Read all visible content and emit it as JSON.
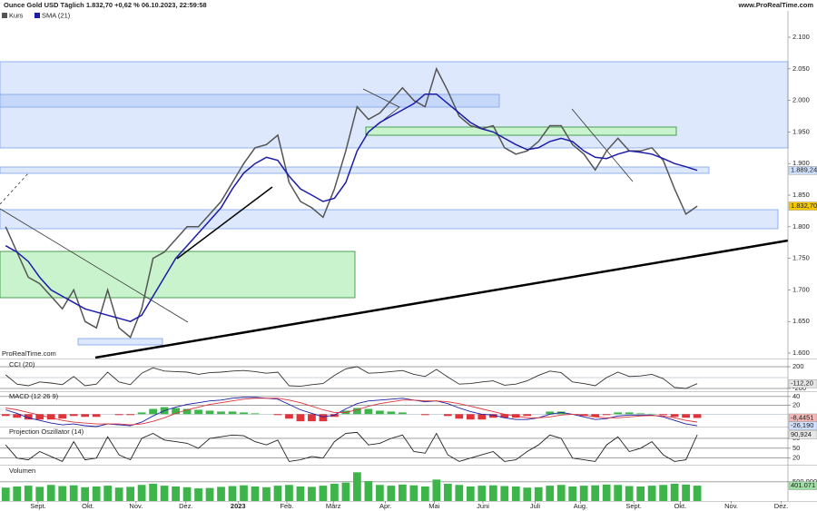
{
  "chart_data": [
    {
      "type": "line",
      "title": "Ounce Gold USD Täglich 1.832,70 +0,62 % 06.10.2023, 22:59:58",
      "source": "www.ProRealTime.com",
      "watermark": "ProRealTime.com",
      "xlim": [
        -0.5,
        69
      ],
      "ylim": [
        1591.4,
        2141.7
      ],
      "yticks": [
        {
          "value": 2100,
          "label": "2.100"
        },
        {
          "value": 2050,
          "label": "2.050"
        },
        {
          "value": 2000,
          "label": "2.000"
        },
        {
          "value": 1950,
          "label": "1.950"
        },
        {
          "value": 1900,
          "label": "1.900"
        },
        {
          "value": 1850,
          "label": "1.850"
        },
        {
          "value": 1800,
          "label": "1.800"
        },
        {
          "value": 1750,
          "label": "1.750"
        },
        {
          "value": 1700,
          "label": "1.700"
        },
        {
          "value": 1650,
          "label": "1.650"
        },
        {
          "value": 1600,
          "label": "1.600"
        }
      ],
      "series": [
        {
          "name": "Kurs",
          "color": "#555555",
          "values": [
            1800,
            1760,
            1720,
            1710,
            1690,
            1670,
            1700,
            1650,
            1640,
            1700,
            1640,
            1625,
            1670,
            1750,
            1760,
            1780,
            1800,
            1800,
            1820,
            1840,
            1870,
            1900,
            1925,
            1930,
            1945,
            1870,
            1840,
            1830,
            1815,
            1860,
            1920,
            1990,
            1970,
            1980,
            2000,
            2020,
            2000,
            1990,
            2050,
            2015,
            1975,
            1960,
            1955,
            1960,
            1925,
            1915,
            1920,
            1935,
            1960,
            1960,
            1930,
            1915,
            1890,
            1920,
            1940,
            1920,
            1920,
            1925,
            1905,
            1860,
            1820,
            1832.7
          ]
        },
        {
          "name": "SMA (21)",
          "color": "#1c1ca8",
          "values": [
            1770,
            1760,
            1745,
            1720,
            1700,
            1690,
            1680,
            1670,
            1665,
            1660,
            1655,
            1650,
            1660,
            1690,
            1720,
            1750,
            1770,
            1790,
            1810,
            1830,
            1860,
            1885,
            1900,
            1910,
            1905,
            1880,
            1860,
            1850,
            1840,
            1845,
            1870,
            1920,
            1950,
            1965,
            1975,
            1985,
            1995,
            2010,
            2010,
            1995,
            1980,
            1965,
            1955,
            1950,
            1940,
            1930,
            1922,
            1925,
            1935,
            1940,
            1935,
            1920,
            1910,
            1908,
            1915,
            1920,
            1918,
            1915,
            1908,
            1900,
            1895,
            1889.24
          ]
        }
      ],
      "markers": [
        {
          "value": 1889.24,
          "label": "1.889,24",
          "color": "#cfe0ff"
        },
        {
          "value": 1832.7,
          "label": "1.832,70",
          "color": "#f5c800"
        }
      ]
    },
    {
      "type": "line",
      "title": "CCI (20)",
      "xlim": [
        -0.5,
        69
      ],
      "ylim": [
        -250,
        317
      ],
      "yticks": [
        200,
        -200
      ],
      "series": [
        {
          "color": "#333333",
          "values": [
            50,
            -120,
            -150,
            -80,
            -100,
            -130,
            20,
            -150,
            -120,
            100,
            -80,
            -130,
            80,
            180,
            120,
            110,
            100,
            60,
            90,
            100,
            120,
            130,
            110,
            80,
            100,
            -150,
            -160,
            -130,
            -110,
            40,
            160,
            200,
            80,
            90,
            110,
            130,
            60,
            20,
            150,
            10,
            -120,
            -110,
            -80,
            -60,
            -140,
            -120,
            -60,
            40,
            120,
            90,
            -80,
            -110,
            -150,
            0,
            100,
            20,
            30,
            60,
            -20,
            -180,
            -200,
            -112.2
          ]
        }
      ],
      "markers": [
        {
          "value": -112.2,
          "label": "-112,20",
          "color": "#e6e6e6"
        }
      ]
    },
    {
      "type": "line",
      "title": "MACD (12 26 9)",
      "xlim": [
        -0.5,
        69
      ],
      "ylim": [
        -28,
        50
      ],
      "yticks": [
        40,
        20
      ],
      "series": [
        {
          "kind": "histogram",
          "color": "#3db54a",
          "neg_color": "#e0343a",
          "values": [
            -4,
            -8,
            -12,
            -12,
            -12,
            -10,
            -4,
            -6,
            -6,
            0,
            -2,
            -2,
            4,
            12,
            16,
            14,
            12,
            10,
            8,
            6,
            6,
            4,
            2,
            0,
            -2,
            -10,
            -16,
            -16,
            -16,
            -6,
            8,
            14,
            12,
            8,
            6,
            4,
            0,
            -2,
            0,
            -4,
            -10,
            -12,
            -12,
            -8,
            -8,
            -8,
            -4,
            0,
            6,
            6,
            0,
            -4,
            -6,
            -2,
            4,
            4,
            2,
            1,
            -2,
            -6,
            -8,
            -8.4451
          ]
        },
        {
          "color": "#1c1ca8",
          "values": [
            10,
            2,
            -8,
            -14,
            -20,
            -24,
            -22,
            -26,
            -28,
            -22,
            -24,
            -26,
            -18,
            -4,
            8,
            16,
            22,
            26,
            30,
            32,
            36,
            38,
            38,
            36,
            34,
            22,
            10,
            2,
            -6,
            -2,
            12,
            24,
            30,
            32,
            34,
            36,
            32,
            28,
            30,
            24,
            14,
            6,
            0,
            -2,
            -8,
            -12,
            -12,
            -8,
            0,
            4,
            0,
            -6,
            -12,
            -10,
            -4,
            -2,
            -2,
            -2,
            -6,
            -14,
            -22,
            -26.19
          ]
        },
        {
          "color": "#e0343a",
          "values": [
            14,
            10,
            4,
            -2,
            -8,
            -14,
            -18,
            -20,
            -22,
            -22,
            -22,
            -24,
            -22,
            -16,
            -8,
            2,
            10,
            16,
            22,
            26,
            30,
            34,
            36,
            36,
            36,
            32,
            26,
            18,
            10,
            4,
            4,
            10,
            18,
            24,
            28,
            32,
            32,
            30,
            30,
            28,
            24,
            18,
            12,
            6,
            0,
            -4,
            -8,
            -8,
            -6,
            -2,
            0,
            -2,
            -6,
            -8,
            -8,
            -6,
            -4,
            -3,
            -4,
            -8,
            -14,
            -17.74
          ]
        }
      ],
      "markers": [
        {
          "value": -8.4451,
          "label": "-8,4451",
          "color": "#f4b6b6"
        },
        {
          "value": -26.19,
          "label": "-26,190",
          "color": "#cfe0ff"
        }
      ]
    },
    {
      "type": "line",
      "title": "Projection Oszillator (14)",
      "xlim": [
        -0.5,
        69
      ],
      "ylim": [
        0,
        113
      ],
      "yticks": [
        80,
        50,
        20
      ],
      "series": [
        {
          "color": "#222222",
          "values": [
            60,
            20,
            15,
            40,
            25,
            10,
            70,
            15,
            20,
            85,
            30,
            15,
            80,
            95,
            75,
            70,
            65,
            50,
            80,
            85,
            90,
            88,
            70,
            60,
            75,
            10,
            15,
            25,
            20,
            70,
            95,
            98,
            60,
            65,
            80,
            90,
            40,
            35,
            95,
            30,
            10,
            20,
            30,
            40,
            10,
            15,
            40,
            60,
            90,
            80,
            20,
            15,
            10,
            60,
            85,
            40,
            50,
            70,
            30,
            10,
            15,
            90.924
          ]
        }
      ],
      "markers": [
        {
          "value": 90.924,
          "label": "90,924",
          "color": "#e6e6e6"
        }
      ]
    },
    {
      "type": "bar",
      "title": "Volumen",
      "xlim": [
        -0.5,
        69
      ],
      "ylim": [
        0,
        900000
      ],
      "yticks": [
        {
          "value": 500000,
          "label": "500.000"
        }
      ],
      "xticks": [
        {
          "value": 2.86,
          "label": "Sept."
        },
        {
          "value": 7.27,
          "label": "Okt."
        },
        {
          "value": 11.5,
          "label": "Nov."
        },
        {
          "value": 15.9,
          "label": "Dez."
        },
        {
          "value": 20.5,
          "label": "2023"
        },
        {
          "value": 24.8,
          "label": "Feb."
        },
        {
          "value": 28.9,
          "label": "März"
        },
        {
          "value": 33.5,
          "label": "Apr."
        },
        {
          "value": 37.8,
          "label": "Mai"
        },
        {
          "value": 42.1,
          "label": "Juni"
        },
        {
          "value": 46.7,
          "label": "Juli"
        },
        {
          "value": 50.7,
          "label": "Aug."
        },
        {
          "value": 55.4,
          "label": "Sept."
        },
        {
          "value": 59.5,
          "label": "Okt."
        },
        {
          "value": 64.0,
          "label": "Nov."
        },
        {
          "value": 68.4,
          "label": "Dez."
        }
      ],
      "color": "#3db54a",
      "values": [
        350000,
        380000,
        400000,
        370000,
        420000,
        390000,
        410000,
        360000,
        380000,
        400000,
        350000,
        370000,
        420000,
        450000,
        400000,
        380000,
        360000,
        330000,
        340000,
        370000,
        390000,
        410000,
        380000,
        360000,
        400000,
        420000,
        380000,
        370000,
        400000,
        450000,
        480000,
        750000,
        520000,
        420000,
        400000,
        430000,
        410000,
        380000,
        560000,
        450000,
        420000,
        380000,
        400000,
        410000,
        390000,
        380000,
        350000,
        360000,
        400000,
        420000,
        380000,
        400000,
        410000,
        430000,
        420000,
        390000,
        380000,
        400000,
        420000,
        450000,
        430000,
        401071
      ],
      "markers": [
        {
          "value": 401071,
          "label": "401.071",
          "color": "#9fe0a5"
        }
      ]
    }
  ]
}
